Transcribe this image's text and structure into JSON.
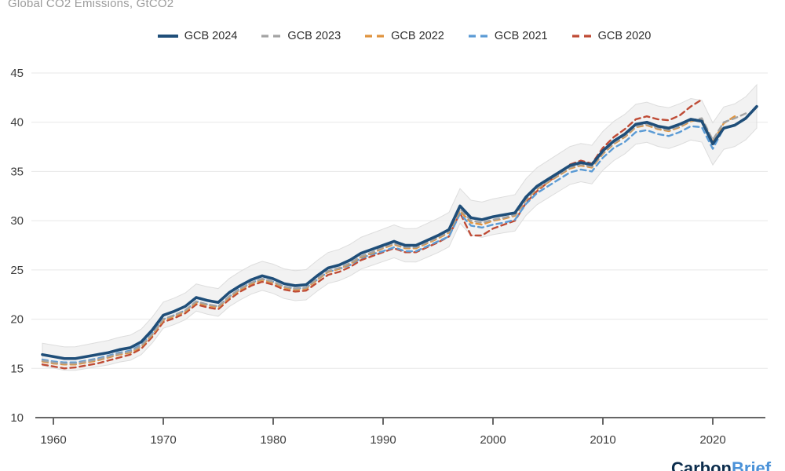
{
  "title": "Global CO2 Emissions, GtCO2",
  "watermark": {
    "part1": "Carbon",
    "part2": "Brief"
  },
  "chart_data": {
    "type": "line",
    "title": "Global CO2 Emissions, GtCO2",
    "ylabel": "GtCO2",
    "grid": true,
    "legend_position": "top",
    "xlim": [
      1959,
      2025
    ],
    "ylim": [
      10,
      45
    ],
    "x_ticks": [
      1960,
      1970,
      1980,
      1990,
      2000,
      2010,
      2020
    ],
    "y_ticks": [
      10,
      15,
      20,
      25,
      30,
      35,
      40,
      45
    ],
    "start_year": 1959,
    "uncertainty_band": {
      "around_series": "GCB 2024",
      "halfwidth_start": 1.15,
      "halfwidth_end": 2.2,
      "fill": "#ececec",
      "edge": "#dddddd"
    },
    "series": [
      {
        "name": "GCB 2024",
        "color": "#1f4e79",
        "dash": "solid",
        "width": 3.6,
        "values": [
          16.4,
          16.2,
          16.0,
          16.0,
          16.2,
          16.4,
          16.6,
          16.9,
          17.1,
          17.7,
          18.9,
          20.4,
          20.8,
          21.3,
          22.2,
          21.9,
          21.7,
          22.7,
          23.4,
          24.0,
          24.4,
          24.1,
          23.6,
          23.4,
          23.5,
          24.4,
          25.2,
          25.5,
          26.0,
          26.7,
          27.1,
          27.5,
          27.9,
          27.5,
          27.5,
          28.0,
          28.5,
          29.1,
          31.5,
          30.3,
          30.1,
          30.4,
          30.6,
          30.8,
          32.4,
          33.5,
          34.2,
          34.9,
          35.6,
          35.9,
          35.7,
          37.1,
          38.1,
          38.8,
          39.8,
          40.0,
          39.6,
          39.4,
          39.8,
          40.3,
          40.1,
          37.8,
          39.4,
          39.7,
          40.4,
          41.6
        ]
      },
      {
        "name": "GCB 2023",
        "color": "#a3a3a3",
        "dash": "dashed",
        "width": 2.4,
        "values": [
          15.8,
          15.6,
          15.5,
          15.5,
          15.7,
          15.9,
          16.2,
          16.5,
          16.7,
          17.3,
          18.5,
          20.0,
          20.4,
          20.9,
          21.8,
          21.5,
          21.3,
          22.3,
          23.1,
          23.7,
          24.1,
          23.8,
          23.3,
          23.1,
          23.2,
          24.1,
          24.9,
          25.2,
          25.7,
          26.4,
          26.8,
          27.3,
          27.7,
          27.3,
          27.3,
          27.8,
          28.3,
          28.9,
          31.2,
          30.0,
          29.8,
          30.1,
          30.3,
          30.6,
          32.2,
          33.3,
          34.0,
          34.7,
          35.4,
          35.7,
          35.5,
          36.9,
          37.9,
          38.6,
          39.6,
          39.8,
          39.4,
          39.2,
          39.6,
          40.2,
          40.4,
          38.2,
          40.0,
          40.4,
          40.9
        ]
      },
      {
        "name": "GCB 2022",
        "color": "#e0943f",
        "dash": "dashed",
        "width": 2.4,
        "values": [
          15.7,
          15.5,
          15.4,
          15.4,
          15.6,
          15.8,
          16.1,
          16.4,
          16.6,
          17.2,
          18.4,
          19.9,
          20.3,
          20.8,
          21.7,
          21.4,
          21.2,
          22.2,
          23.0,
          23.6,
          24.0,
          23.7,
          23.2,
          23.0,
          23.1,
          24.0,
          24.8,
          25.1,
          25.6,
          26.3,
          26.7,
          27.2,
          27.6,
          27.2,
          27.2,
          27.7,
          28.2,
          28.8,
          31.0,
          29.8,
          29.6,
          30.0,
          30.2,
          30.5,
          32.1,
          33.2,
          33.9,
          34.6,
          35.3,
          35.6,
          35.4,
          36.8,
          37.8,
          38.5,
          39.5,
          39.7,
          39.3,
          39.1,
          39.5,
          40.1,
          40.3,
          38.0,
          39.9,
          40.6
        ]
      },
      {
        "name": "GCB 2021",
        "color": "#5b9bd5",
        "dash": "dashed",
        "width": 2.4,
        "values": [
          15.9,
          15.7,
          15.6,
          15.6,
          15.8,
          16.0,
          16.3,
          16.6,
          16.8,
          17.4,
          18.6,
          20.0,
          20.4,
          20.9,
          21.8,
          21.5,
          21.3,
          22.3,
          23.1,
          23.7,
          24.1,
          23.8,
          23.3,
          23.1,
          23.2,
          24.0,
          24.8,
          25.1,
          25.5,
          26.2,
          26.6,
          26.9,
          27.3,
          26.9,
          26.9,
          27.4,
          27.9,
          28.4,
          30.7,
          29.5,
          29.3,
          29.6,
          29.8,
          30.1,
          31.7,
          32.8,
          33.5,
          34.2,
          34.9,
          35.2,
          35.0,
          36.4,
          37.4,
          38.0,
          39.0,
          39.2,
          38.8,
          38.6,
          39.0,
          39.6,
          39.5,
          37.3,
          39.4
        ]
      },
      {
        "name": "GCB 2020",
        "color": "#bf4b35",
        "dash": "dashed",
        "width": 2.4,
        "values": [
          15.4,
          15.2,
          15.0,
          15.1,
          15.3,
          15.5,
          15.8,
          16.1,
          16.4,
          17.0,
          18.2,
          19.7,
          20.1,
          20.6,
          21.5,
          21.2,
          21.0,
          22.0,
          22.8,
          23.4,
          23.8,
          23.5,
          23.0,
          22.8,
          22.9,
          23.7,
          24.5,
          24.8,
          25.3,
          26.0,
          26.4,
          26.8,
          27.2,
          26.8,
          26.8,
          27.3,
          27.8,
          28.4,
          30.8,
          28.5,
          28.5,
          29.2,
          29.6,
          30.0,
          31.8,
          33.0,
          33.9,
          34.8,
          35.7,
          36.1,
          35.8,
          37.4,
          38.5,
          39.3,
          40.3,
          40.6,
          40.3,
          40.2,
          40.7,
          41.6,
          42.3
        ]
      }
    ]
  }
}
